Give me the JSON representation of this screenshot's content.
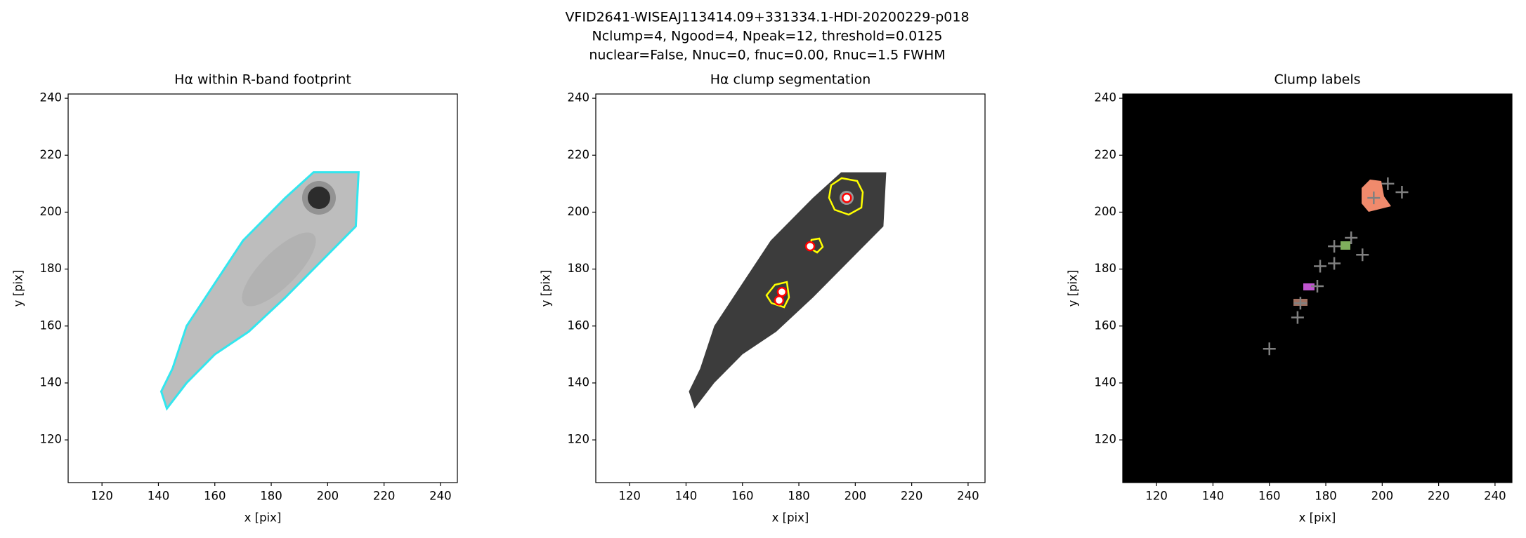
{
  "suptitle": [
    "VFID2641-WISEAJ113414.09+331334.1-HDI-20200229-p018",
    "Nclump=4, Ngood=4, Npeak=12, threshold=0.0125",
    "nuclear=False, Nnuc=0, fnuc=0.00, Rnuc=1.5 FWHM"
  ],
  "chart_data": [
    {
      "type": "image",
      "title": "Hα within R-band footprint",
      "xlabel": "x [pix]",
      "ylabel": "y [pix]",
      "xlim": [
        108,
        246
      ],
      "ylim": [
        105,
        241.5
      ],
      "xticks": [
        120,
        140,
        160,
        180,
        200,
        220,
        240
      ],
      "yticks": [
        120,
        140,
        160,
        180,
        200,
        220,
        240
      ]
    },
    {
      "type": "image",
      "title": "Hα clump segmentation",
      "xlabel": "x [pix]",
      "ylabel": "y [pix]",
      "xlim": [
        108,
        246
      ],
      "ylim": [
        105,
        241.5
      ],
      "xticks": [
        120,
        140,
        160,
        180,
        200,
        220,
        240
      ],
      "yticks": [
        120,
        140,
        160,
        180,
        200,
        220,
        240
      ],
      "series": [
        {
          "marker": "circle",
          "color": "#ff0000",
          "x": [
            197,
            184,
            174,
            173
          ],
          "y": [
            205,
            188,
            172,
            169
          ]
        }
      ]
    },
    {
      "type": "image",
      "title": "Clump labels",
      "xlabel": "x [pix]",
      "ylabel": "y [pix]",
      "xlim": [
        108,
        246
      ],
      "ylim": [
        105,
        241.5
      ],
      "xticks": [
        120,
        140,
        160,
        180,
        200,
        220,
        240
      ],
      "yticks": [
        120,
        140,
        160,
        180,
        200,
        220,
        240
      ],
      "series": [
        {
          "marker": "plus",
          "color": "#808080",
          "x": [
            197,
            202,
            207,
            189,
            183,
            193,
            183,
            178,
            177,
            171,
            170,
            160
          ],
          "y": [
            205,
            210,
            207,
            191,
            188,
            185,
            182,
            181,
            174,
            168,
            163,
            152
          ]
        }
      ]
    }
  ]
}
